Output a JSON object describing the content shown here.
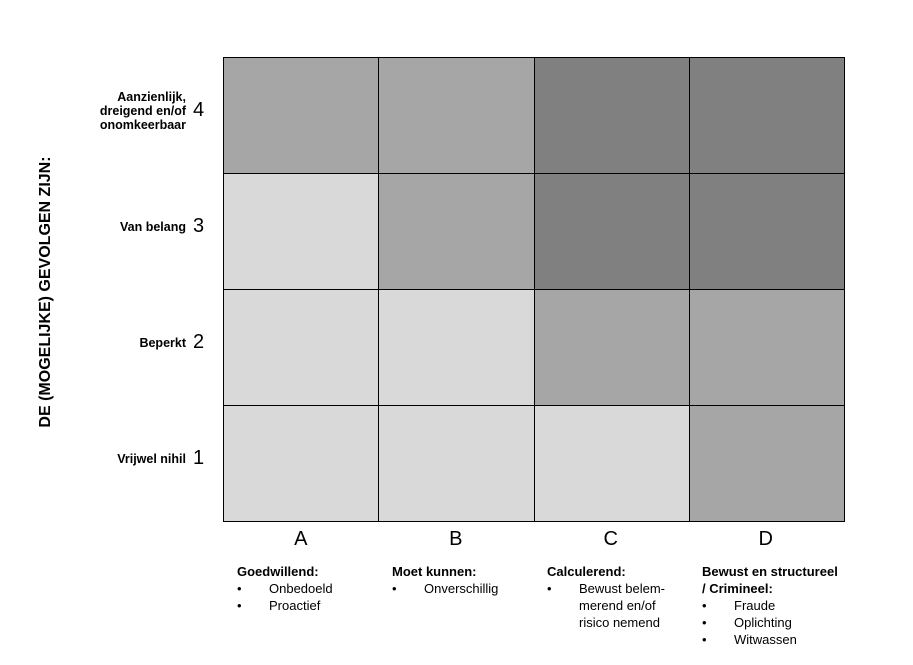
{
  "y_title": "DE (MOGELIJKE) GEVOLGEN ZIJN:",
  "rows": [
    {
      "num": "4",
      "label": [
        "Aanzienlijk,",
        "dreigend en/of",
        "onomkeerbaar"
      ]
    },
    {
      "num": "3",
      "label": [
        "Van belang"
      ]
    },
    {
      "num": "2",
      "label": [
        "Beperkt"
      ]
    },
    {
      "num": "1",
      "label": [
        "Vrijwel nihil"
      ]
    }
  ],
  "columns": [
    {
      "letter": "A",
      "heading": [
        "Goedwillend:"
      ],
      "bullets": [
        [
          "Onbedoeld"
        ],
        [
          "Proactief"
        ]
      ]
    },
    {
      "letter": "B",
      "heading": [
        "Moet kunnen:"
      ],
      "bullets": [
        [
          "Onverschillig"
        ]
      ]
    },
    {
      "letter": "C",
      "heading": [
        "Calculerend:"
      ],
      "bullets": [
        [
          "Bewust belem-",
          "merend en/of",
          "risico nemend"
        ]
      ]
    },
    {
      "letter": "D",
      "heading": [
        "Bewust en structureel",
        "/ Crimineel:"
      ],
      "bullets": [
        [
          "Fraude"
        ],
        [
          "Oplichting"
        ],
        [
          "Witwassen"
        ]
      ]
    }
  ],
  "colors": {
    "low": "#d9d9d9",
    "medium": "#a6a6a6",
    "high": "#808080"
  },
  "matrix": [
    [
      "medium",
      "medium",
      "high",
      "high"
    ],
    [
      "low",
      "medium",
      "high",
      "high"
    ],
    [
      "low",
      "low",
      "medium",
      "medium"
    ],
    [
      "low",
      "low",
      "low",
      "medium"
    ]
  ]
}
